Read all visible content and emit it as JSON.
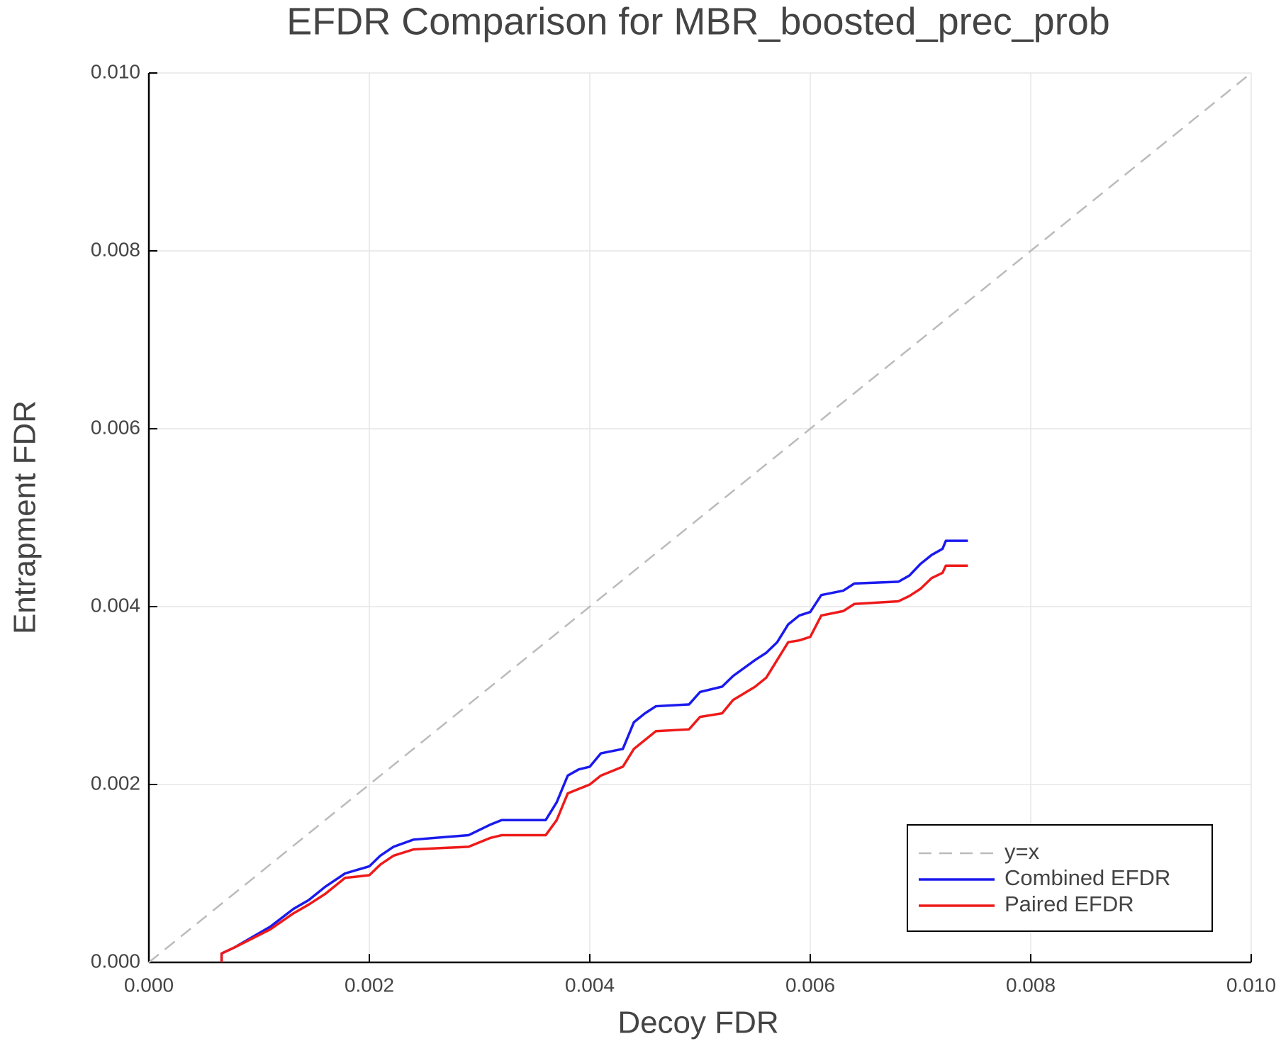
{
  "chart_data": {
    "type": "line",
    "title": "EFDR Comparison for MBR_boosted_prec_prob",
    "x_label": "Decoy FDR",
    "y_label": "Entrapment FDR",
    "xlim": [
      0,
      0.01
    ],
    "ylim": [
      0,
      0.01
    ],
    "xticks": [
      {
        "value": 0,
        "label": "0.000"
      },
      {
        "value": 0.002,
        "label": "0.002"
      },
      {
        "value": 0.004,
        "label": "0.004"
      },
      {
        "value": 0.006,
        "label": "0.006"
      },
      {
        "value": 0.008,
        "label": "0.008"
      },
      {
        "value": 0.01,
        "label": "0.010"
      }
    ],
    "yticks": [
      {
        "value": 0,
        "label": "0.000"
      },
      {
        "value": 0.002,
        "label": "0.002"
      },
      {
        "value": 0.004,
        "label": "0.004"
      },
      {
        "value": 0.006,
        "label": "0.006"
      },
      {
        "value": 0.008,
        "label": "0.008"
      },
      {
        "value": 0.01,
        "label": "0.010"
      }
    ],
    "grid": true,
    "legend": "lower right",
    "series": [
      {
        "name": "y=x",
        "color": "#bbbbbb",
        "dash": "dashed",
        "x": [
          0,
          0.01
        ],
        "values": [
          0,
          0.01
        ]
      },
      {
        "name": "Combined EFDR",
        "color": "#1a1aee",
        "x": [
          0.00066,
          0.00066,
          0.00078,
          0.0011,
          0.00131,
          0.00145,
          0.0016,
          0.00178,
          0.002,
          0.0021,
          0.00222,
          0.0024,
          0.0029,
          0.0031,
          0.0032,
          0.0036,
          0.0037,
          0.0038,
          0.0039,
          0.004,
          0.0041,
          0.0043,
          0.0044,
          0.0045,
          0.0046,
          0.0049,
          0.005,
          0.0052,
          0.0053,
          0.0055,
          0.0056,
          0.0057,
          0.0058,
          0.0059,
          0.006,
          0.0061,
          0.0063,
          0.0064,
          0.0068,
          0.0069,
          0.007,
          0.0071,
          0.0072,
          0.00723,
          0.00743
        ],
        "values": [
          0,
          0.0001,
          0.00017,
          0.0004,
          0.0006,
          0.0007,
          0.00085,
          0.001,
          0.00108,
          0.0012,
          0.0013,
          0.00138,
          0.00143,
          0.00155,
          0.0016,
          0.0016,
          0.0018,
          0.0021,
          0.00217,
          0.0022,
          0.00235,
          0.0024,
          0.0027,
          0.0028,
          0.00288,
          0.0029,
          0.00304,
          0.0031,
          0.00322,
          0.0034,
          0.00348,
          0.0036,
          0.0038,
          0.0039,
          0.00394,
          0.00413,
          0.00418,
          0.00426,
          0.00428,
          0.00435,
          0.00448,
          0.00458,
          0.00465,
          0.00474,
          0.00474
        ]
      },
      {
        "name": "Paired EFDR",
        "color": "#ee1a1a",
        "x": [
          0.00066,
          0.00066,
          0.00078,
          0.0011,
          0.00131,
          0.00145,
          0.0016,
          0.00178,
          0.002,
          0.0021,
          0.00222,
          0.0024,
          0.0029,
          0.0031,
          0.0032,
          0.0036,
          0.0037,
          0.0038,
          0.0039,
          0.004,
          0.0041,
          0.0043,
          0.0044,
          0.0045,
          0.0046,
          0.0049,
          0.005,
          0.0052,
          0.0053,
          0.0055,
          0.0056,
          0.0057,
          0.0058,
          0.0059,
          0.006,
          0.0061,
          0.0063,
          0.0064,
          0.0068,
          0.0069,
          0.007,
          0.0071,
          0.0072,
          0.00723,
          0.00743
        ],
        "values": [
          0,
          0.0001,
          0.00017,
          0.00037,
          0.00055,
          0.00065,
          0.00077,
          0.00095,
          0.00098,
          0.0011,
          0.0012,
          0.00127,
          0.0013,
          0.0014,
          0.00143,
          0.00143,
          0.0016,
          0.0019,
          0.00195,
          0.002,
          0.0021,
          0.0022,
          0.0024,
          0.0025,
          0.0026,
          0.00262,
          0.00276,
          0.0028,
          0.00295,
          0.0031,
          0.0032,
          0.0034,
          0.0036,
          0.00362,
          0.00366,
          0.0039,
          0.00395,
          0.00403,
          0.00406,
          0.00412,
          0.0042,
          0.00432,
          0.00438,
          0.00446,
          0.00446
        ]
      }
    ]
  }
}
